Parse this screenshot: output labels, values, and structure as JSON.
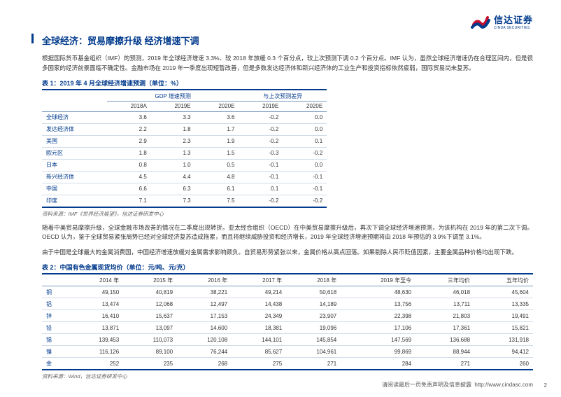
{
  "logo": {
    "cn": "信达证券",
    "en": "CINDA SECURITIES"
  },
  "title": "全球经济：贸易摩擦升级 经济增速下调",
  "para1": "根据国际货币基金组织（IMF）的预测，2019 年全球经济增速 3.3%、较 2018 年放缓 0.3 个百分点，较上次预测下调 0.2 个百分点。IMF 认为，虽然全球经济增速仍在合理区间内，但是很多国家的经济前景面临不确定性。金融市场在 2019 年一季度出现短暂改善，但是多数发达经济体和新兴经济体的工业生产和投资指标依然疲弱，国际贸易尚未复苏。",
  "table1": {
    "caption": "表 1：2019 年 4 月全球经济增速预测（单位：%）",
    "group_headers": [
      "",
      "GDP 增速预测",
      "与上次预测差异"
    ],
    "headers": [
      "",
      "2018A",
      "2019E",
      "2020E",
      "2019E",
      "2020E"
    ],
    "rows": [
      [
        "全球经济",
        "3.6",
        "3.3",
        "3.6",
        "-0.2",
        "0.0"
      ],
      [
        "发达经济体",
        "2.2",
        "1.8",
        "1.7",
        "-0.2",
        "0.0"
      ],
      [
        "美国",
        "2.9",
        "2.3",
        "1.9",
        "-0.2",
        "0.1"
      ],
      [
        "欧元区",
        "1.8",
        "1.3",
        "1.5",
        "-0.3",
        "-0.2"
      ],
      [
        "日本",
        "0.8",
        "1.0",
        "0.5",
        "-0.1",
        "0.0"
      ],
      [
        "新兴经济体",
        "4.5",
        "4.4",
        "4.8",
        "-0.1",
        "-0.1"
      ],
      [
        "中国",
        "6.6",
        "6.3",
        "6.1",
        "0.1",
        "-0.1"
      ],
      [
        "印度",
        "7.1",
        "7.3",
        "7.5",
        "-0.2",
        "-0.2"
      ]
    ],
    "source": "资料来源：IMF《世界经济展望》，信达证券研发中心"
  },
  "para2": "随着中美贸易摩擦升级，全球金融市场改善的情况在二季度出现转折。亚太经合组织（OECD）在中美贸易摩擦升级后，再次下调全球经济增速预测，为该机构在 2019 年的第二次下调。OECD 认为，鉴于全球贸易紧张局势已经对全球经济复苏造成拖累，而且将继续威胁投资和经济增长，2019 年全球经济增速预期将由 2018 年预估的 3.9%下调至 3.1%。",
  "para3": "由于中国是全球最大的金属消费国，中国经济增速放缓对金属需求影响颇负。自贸易形势紧张以来，金属价格从高点回落。如果剔除人民币贬值因素，主要金属品种价格均出现下跌。",
  "table2": {
    "caption": "表 2：中国有色金属现货均价（单位：元/吨、元/克）",
    "headers": [
      "",
      "2014 年",
      "2015 年",
      "2016 年",
      "2017 年",
      "2018 年",
      "2019 年至今",
      "三年均价",
      "五年均价"
    ],
    "rows": [
      [
        "铜",
        "49,150",
        "40,819",
        "38,221",
        "49,214",
        "50,618",
        "48,630",
        "46,018",
        "45,604"
      ],
      [
        "铝",
        "13,474",
        "12,068",
        "12,497",
        "14,438",
        "14,189",
        "13,756",
        "13,711",
        "13,335"
      ],
      [
        "锌",
        "16,410",
        "15,637",
        "17,153",
        "24,349",
        "23,907",
        "22,398",
        "21,803",
        "19,491"
      ],
      [
        "铅",
        "13,871",
        "13,097",
        "14,600",
        "18,381",
        "19,096",
        "17,106",
        "17,361",
        "15,821"
      ],
      [
        "锡",
        "139,453",
        "110,073",
        "120,108",
        "144,101",
        "145,854",
        "147,569",
        "136,688",
        "131,918"
      ],
      [
        "镍",
        "116,126",
        "89,100",
        "76,244",
        "85,627",
        "104,961",
        "99,869",
        "88,944",
        "94,412"
      ],
      [
        "金",
        "252",
        "235",
        "268",
        "275",
        "271",
        "284",
        "271",
        "260"
      ]
    ],
    "source": "资料来源：Wind，信达证券研发中心"
  },
  "footer": "请阅读最后一页免责声明及信息披露",
  "url": "http://www.cindasc.com",
  "page": "2",
  "colors": {
    "brand_blue": "#003a8c",
    "brand_red": "#c8102e",
    "row_border": "#d0dce8",
    "header_border": "#7a9ac0"
  }
}
